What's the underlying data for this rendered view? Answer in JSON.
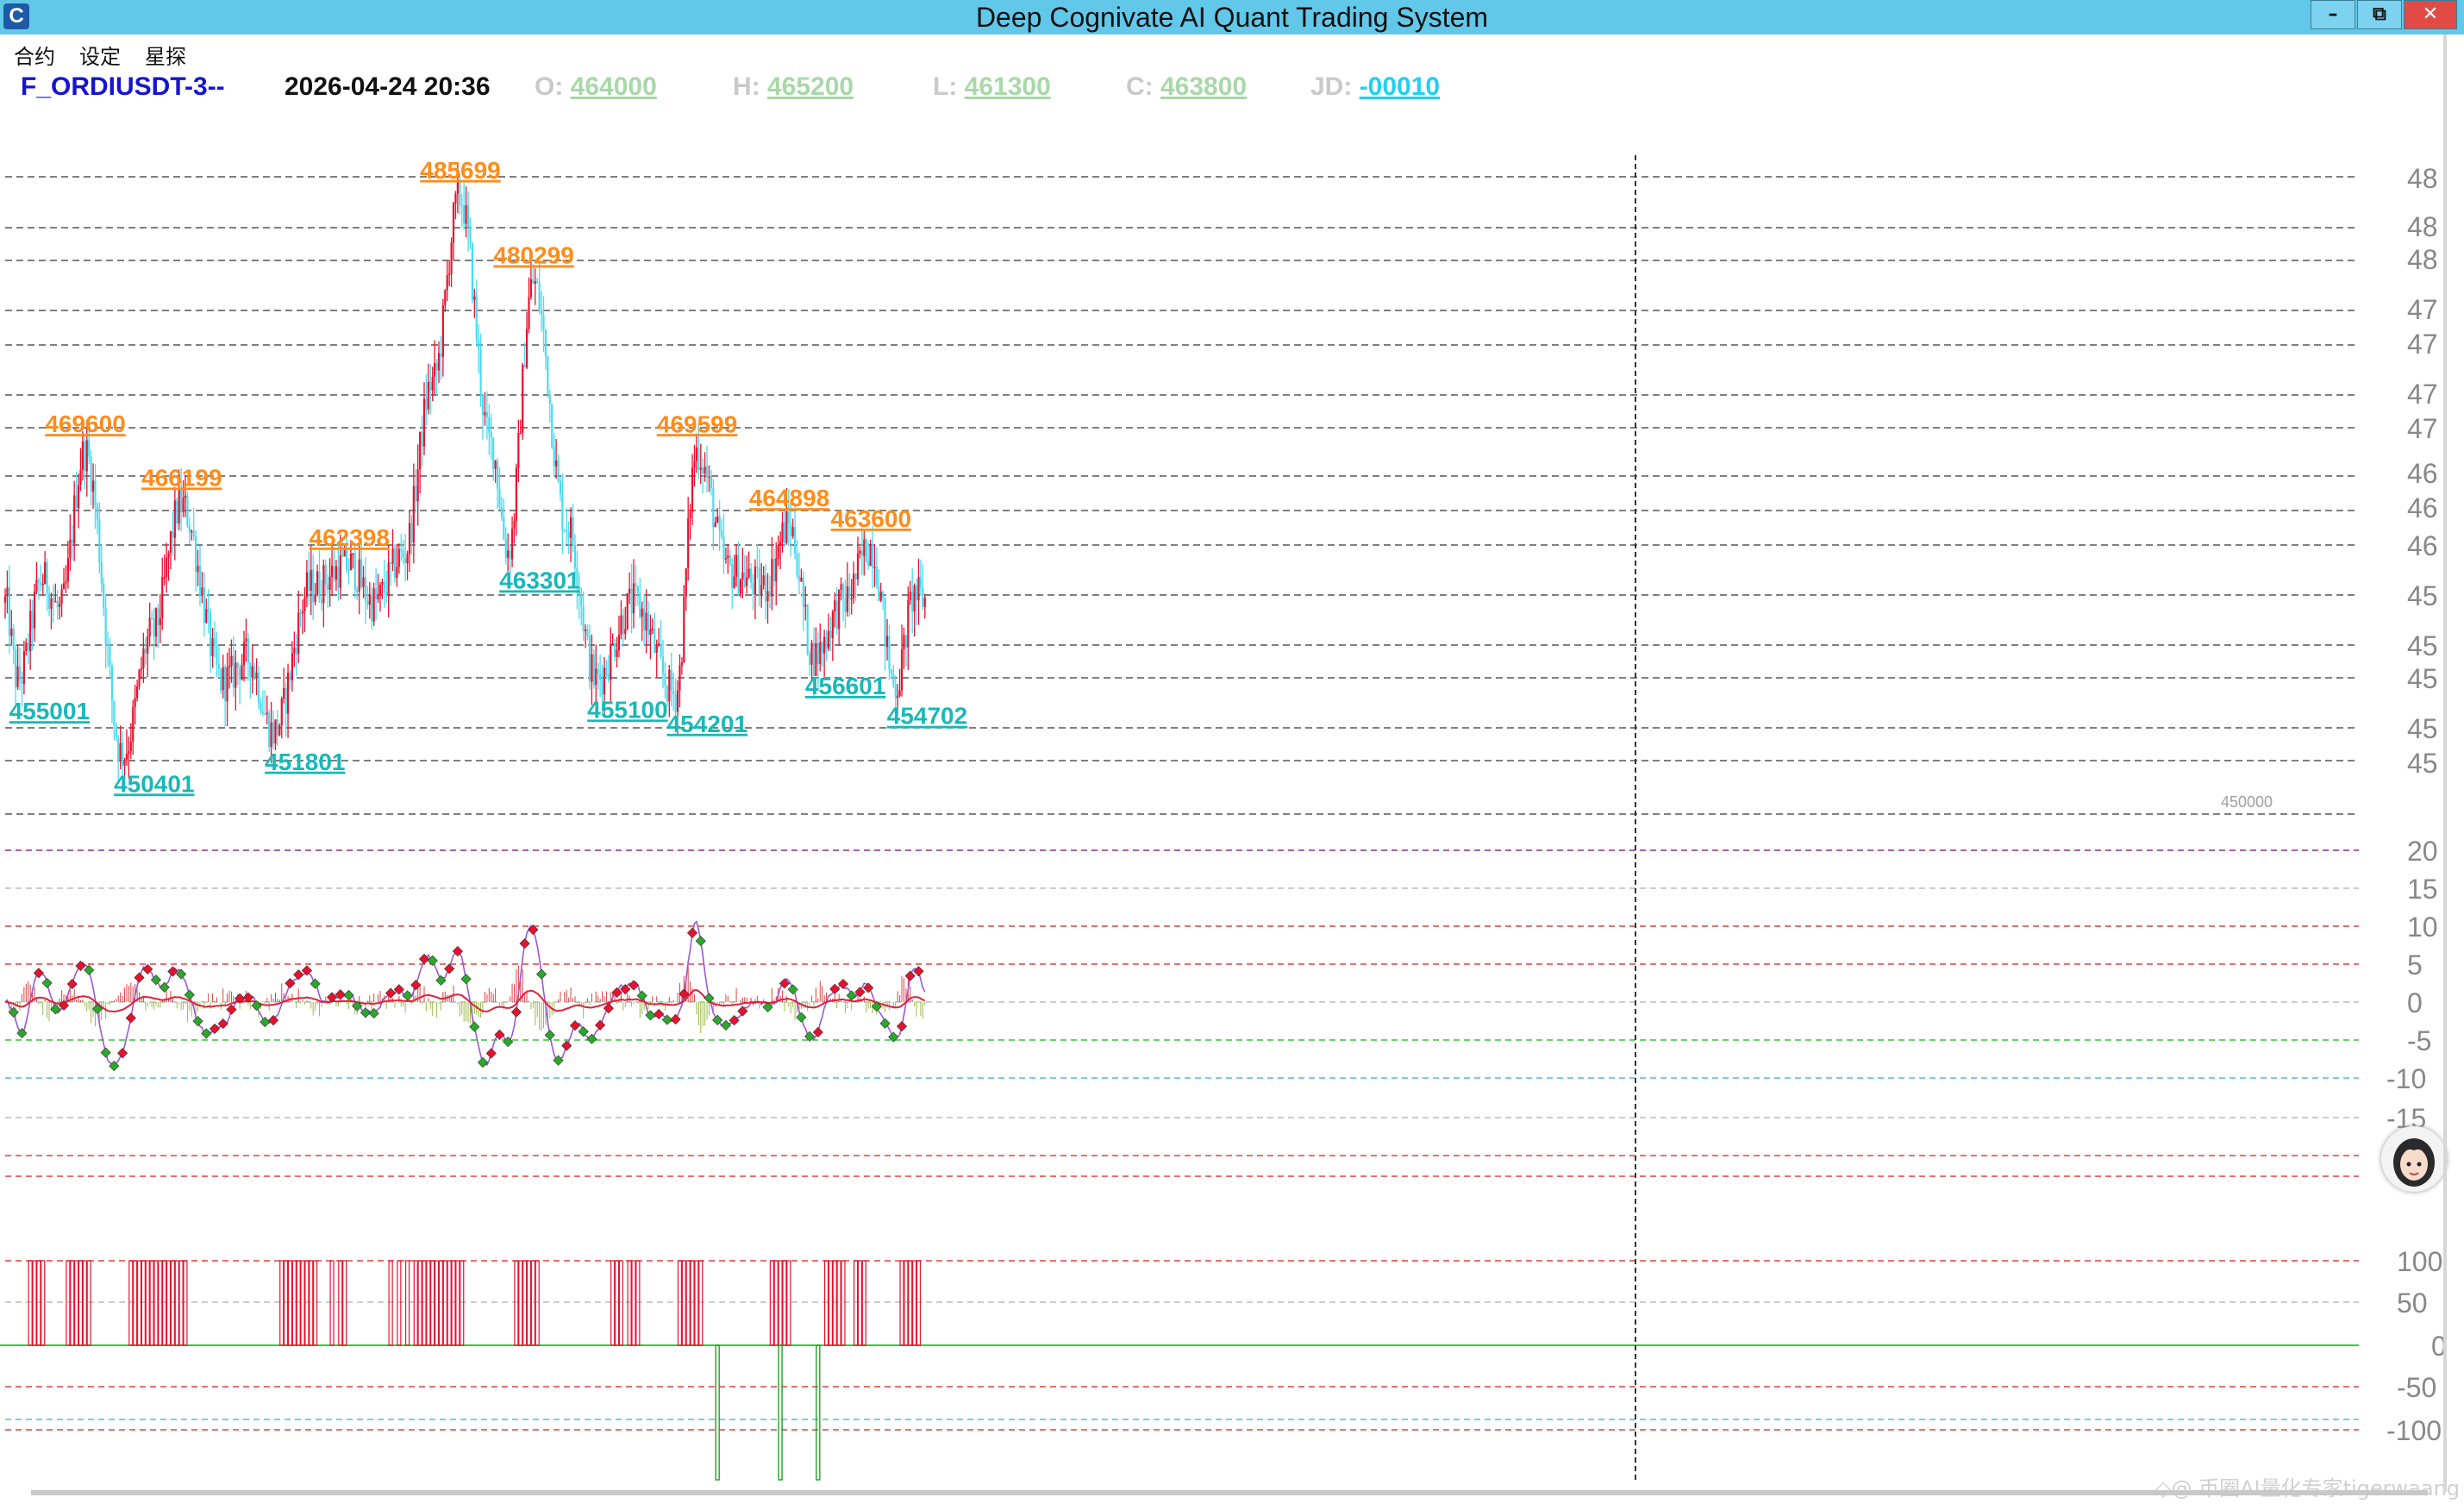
{
  "window": {
    "title": "Deep Cognivate AI Quant Trading System",
    "minimize_glyph": "–",
    "restore_glyph": "⧉",
    "close_glyph": "✕",
    "app_icon": "app-logo-icon"
  },
  "menu": {
    "contract": "合约",
    "settings": "设定",
    "explore": "星探"
  },
  "info": {
    "symbol": "F_ORDIUSDT-3--",
    "datetime": "2026-04-24 20:36",
    "open_key": "O:",
    "open_val": "464000",
    "high_key": "H:",
    "high_val": "465200",
    "low_key": "L:",
    "low_val": "461300",
    "close_key": "C:",
    "close_val": "463800",
    "jd_key": "JD:",
    "jd_val": "-00010"
  },
  "colors": {
    "candle_up": "#e8112d",
    "candle_down": "#49dbf0",
    "peak_label": "#ff8c1a",
    "trough_label": "#19b8b8",
    "osc_line": "#e0203a",
    "osc_signal": "#9b59d0",
    "dot_up": "#e8112d",
    "dot_down": "#2aa82a",
    "crosshair": "#333333"
  },
  "chart_data": {
    "type": "line",
    "price_panel": {
      "markers_peak": [
        {
          "label": "469600",
          "index": 38
        },
        {
          "label": "466199",
          "index": 84
        },
        {
          "label": "462398",
          "index": 164
        },
        {
          "label": "485699",
          "index": 217
        },
        {
          "label": "480299",
          "index": 252
        },
        {
          "label": "469599",
          "index": 330
        },
        {
          "label": "464898",
          "index": 374
        },
        {
          "label": "463600",
          "index": 413
        }
      ],
      "markers_trough": [
        {
          "label": "455001",
          "index": 6
        },
        {
          "label": "450401",
          "index": 56
        },
        {
          "label": "451801",
          "index": 128
        },
        {
          "label": "463301",
          "index": 240
        },
        {
          "label": "455100",
          "index": 282
        },
        {
          "label": "454201",
          "index": 320
        },
        {
          "label": "456601",
          "index": 386
        },
        {
          "label": "454702",
          "index": 425
        }
      ],
      "reference_label": "450000",
      "right_axis_labels": [
        "48",
        "48",
        "48",
        "47",
        "47",
        "47",
        "47",
        "46",
        "46",
        "46",
        "45",
        "45",
        "45",
        "45",
        "45"
      ]
    },
    "oscillator_panel": {
      "y_ticks": [
        "20",
        "15",
        "10",
        "5",
        "0",
        "-5",
        "-10",
        "-15"
      ]
    },
    "signal_panel": {
      "y_ticks": [
        "100",
        "50",
        "0",
        "-50",
        "-100"
      ]
    }
  },
  "avatar": "assistant-avatar-icon",
  "watermark": "◇@ 币圈AI量化专家tigerwaang"
}
